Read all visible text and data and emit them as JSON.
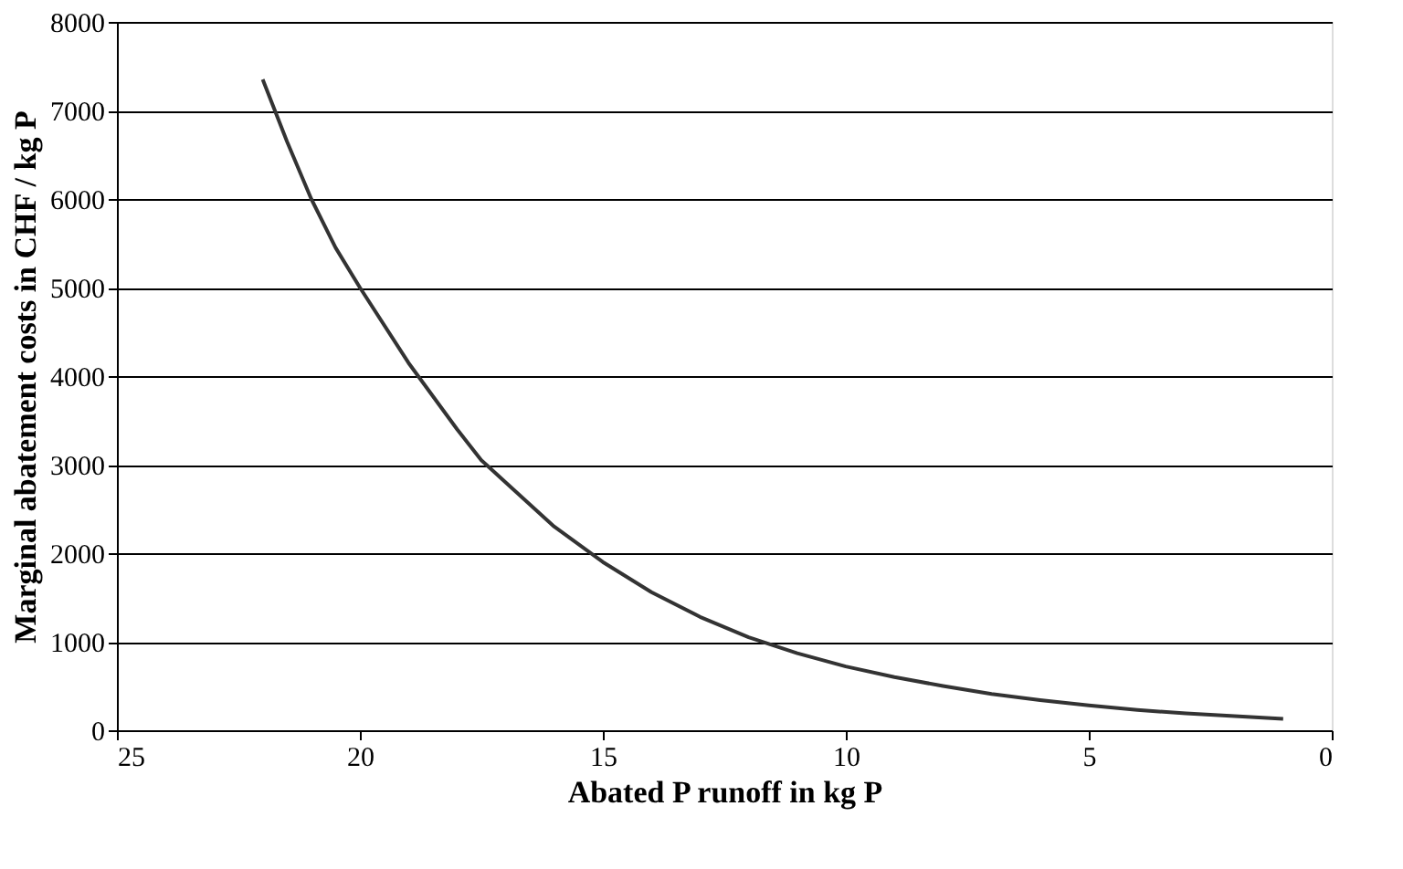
{
  "chart_data": {
    "type": "line",
    "xlabel": "Abated P runoff in kg P",
    "ylabel": "Marginal abatement costs in CHF / kg P",
    "series": [
      {
        "color": "#333333",
        "x": [
          22,
          21.5,
          21,
          20.5,
          20,
          19,
          18,
          17.5,
          17,
          16,
          15,
          14,
          13,
          12,
          11,
          10,
          9,
          8,
          7,
          6,
          5,
          4,
          3,
          2,
          1
        ],
        "values": [
          7350,
          6650,
          6000,
          5450,
          5000,
          4150,
          3400,
          3050,
          2800,
          2300,
          1900,
          1560,
          1280,
          1050,
          870,
          720,
          600,
          500,
          410,
          340,
          280,
          230,
          190,
          160,
          130
        ]
      }
    ],
    "xlim": [
      25,
      0
    ],
    "xticks": [
      25,
      20,
      15,
      10,
      5,
      0
    ],
    "ylim": [
      0,
      8000
    ],
    "yticks": [
      0,
      1000,
      2000,
      3000,
      4000,
      5000,
      6000,
      7000,
      8000
    ],
    "grid": "y",
    "line_style": "solid",
    "marker": "none"
  }
}
